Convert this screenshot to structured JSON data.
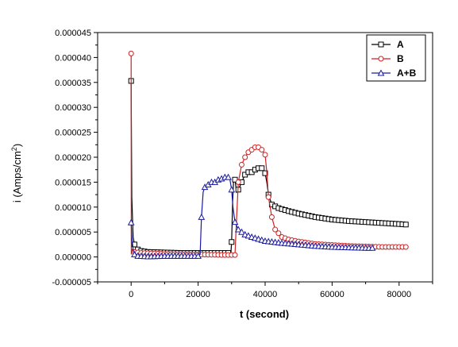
{
  "chart_data": {
    "type": "line",
    "title": "",
    "xlabel": "t (second)",
    "ylabel_main": "i (Amps/cm",
    "ylabel_sup": "2",
    "ylabel_close": ")",
    "xlim": [
      -10000,
      90000
    ],
    "ylim": [
      -5e-06,
      4.5e-05
    ],
    "x_ticks": [
      0,
      20000,
      40000,
      60000,
      80000
    ],
    "x_tick_labels": [
      "0",
      "20000",
      "40000",
      "60000",
      "80000"
    ],
    "y_ticks": [
      -5e-06,
      0,
      5e-06,
      1e-05,
      1.5e-05,
      2e-05,
      2.5e-05,
      3e-05,
      3.5e-05,
      4e-05,
      4.5e-05
    ],
    "y_tick_labels": [
      "-0.000005",
      "0.000000",
      "0.000005",
      "0.000010",
      "0.000015",
      "0.000020",
      "0.000025",
      "0.000030",
      "0.000035",
      "0.000040",
      "0.000045"
    ],
    "grid": false,
    "legend_position": "top-right",
    "series": [
      {
        "name": "A",
        "color": "#000000",
        "marker": "square",
        "points": [
          [
            0,
            3.53e-05
          ],
          [
            200,
            1.2e-05
          ],
          [
            600,
            4e-06
          ],
          [
            1000,
            2.5e-06
          ],
          [
            2000,
            1.5e-06
          ],
          [
            3000,
            1.2e-06
          ],
          [
            5000,
            1e-06
          ],
          [
            10000,
            9e-07
          ],
          [
            15000,
            8e-07
          ],
          [
            20000,
            8e-07
          ],
          [
            25000,
            8e-07
          ],
          [
            29000,
            8e-07
          ],
          [
            29800,
            9e-07
          ],
          [
            30000,
            3e-06
          ],
          [
            30300,
            1.1e-05
          ],
          [
            30600,
            1.55e-05
          ],
          [
            31000,
            1.55e-05
          ],
          [
            31500,
            1.3e-05
          ],
          [
            32000,
            1.35e-05
          ],
          [
            33000,
            1.5e-05
          ],
          [
            34000,
            1.65e-05
          ],
          [
            35000,
            1.7e-05
          ],
          [
            36000,
            1.7e-05
          ],
          [
            37000,
            1.75e-05
          ],
          [
            38000,
            1.78e-05
          ],
          [
            39000,
            1.78e-05
          ],
          [
            40000,
            1.68e-05
          ],
          [
            40500,
            1.5e-05
          ],
          [
            41000,
            1.25e-05
          ],
          [
            42000,
            1.05e-05
          ],
          [
            44000,
            9.8e-06
          ],
          [
            47000,
            9.2e-06
          ],
          [
            50000,
            8.7e-06
          ],
          [
            55000,
            8e-06
          ],
          [
            60000,
            7.5e-06
          ],
          [
            65000,
            7.2e-06
          ],
          [
            70000,
            7e-06
          ],
          [
            75000,
            6.8e-06
          ],
          [
            80000,
            6.6e-06
          ],
          [
            82000,
            6.5e-06
          ]
        ]
      },
      {
        "name": "B",
        "color": "#cc2222",
        "marker": "circle",
        "points": [
          [
            0,
            4.08e-05
          ],
          [
            50,
            5e-07
          ],
          [
            300,
            1.5e-06
          ],
          [
            1000,
            1e-06
          ],
          [
            3000,
            8e-07
          ],
          [
            10000,
            6e-07
          ],
          [
            20000,
            5e-07
          ],
          [
            27000,
            4e-07
          ],
          [
            29000,
            4e-07
          ],
          [
            30000,
            4e-07
          ],
          [
            31000,
            4e-07
          ],
          [
            31500,
            8e-06
          ],
          [
            32000,
            1.5e-05
          ],
          [
            33000,
            1.85e-05
          ],
          [
            34000,
            2e-05
          ],
          [
            35000,
            2.1e-05
          ],
          [
            36000,
            2.15e-05
          ],
          [
            37000,
            2.2e-05
          ],
          [
            38000,
            2.2e-05
          ],
          [
            39000,
            2.15e-05
          ],
          [
            40000,
            2.05e-05
          ],
          [
            40500,
            1.7e-05
          ],
          [
            41000,
            1.2e-05
          ],
          [
            42000,
            8e-06
          ],
          [
            43000,
            5.5e-06
          ],
          [
            45000,
            4e-06
          ],
          [
            47000,
            3.5e-06
          ],
          [
            50000,
            3.1e-06
          ],
          [
            55000,
            2.6e-06
          ],
          [
            60000,
            2.4e-06
          ],
          [
            65000,
            2.2e-06
          ],
          [
            70000,
            2.1e-06
          ],
          [
            75000,
            2e-06
          ],
          [
            80000,
            2e-06
          ],
          [
            82000,
            2e-06
          ]
        ]
      },
      {
        "name": "A+B",
        "color": "#1a1aa0",
        "marker": "triangle",
        "points": [
          [
            0,
            6.9e-06
          ],
          [
            200,
            4e-06
          ],
          [
            600,
            1.5e-06
          ],
          [
            1000,
            5e-07
          ],
          [
            2000,
            2e-07
          ],
          [
            5000,
            1e-07
          ],
          [
            10000,
            2e-07
          ],
          [
            15000,
            2e-07
          ],
          [
            20000,
            2e-07
          ],
          [
            20600,
            5e-07
          ],
          [
            21000,
            8e-06
          ],
          [
            21500,
            1.3e-05
          ],
          [
            22000,
            1.4e-05
          ],
          [
            23000,
            1.45e-05
          ],
          [
            24000,
            1.5e-05
          ],
          [
            25000,
            1.5e-05
          ],
          [
            26000,
            1.55e-05
          ],
          [
            27000,
            1.57e-05
          ],
          [
            28000,
            1.6e-05
          ],
          [
            29000,
            1.6e-05
          ],
          [
            29500,
            1.55e-05
          ],
          [
            30000,
            1.35e-05
          ],
          [
            30400,
            1e-05
          ],
          [
            31000,
            7e-06
          ],
          [
            32000,
            5.5e-06
          ],
          [
            34000,
            4.5e-06
          ],
          [
            36000,
            4e-06
          ],
          [
            40000,
            3.2e-06
          ],
          [
            45000,
            2.8e-06
          ],
          [
            50000,
            2.5e-06
          ],
          [
            55000,
            2.2e-06
          ],
          [
            60000,
            2e-06
          ],
          [
            65000,
            1.9e-06
          ],
          [
            70000,
            1.8e-06
          ],
          [
            72000,
            1.8e-06
          ]
        ]
      }
    ]
  }
}
